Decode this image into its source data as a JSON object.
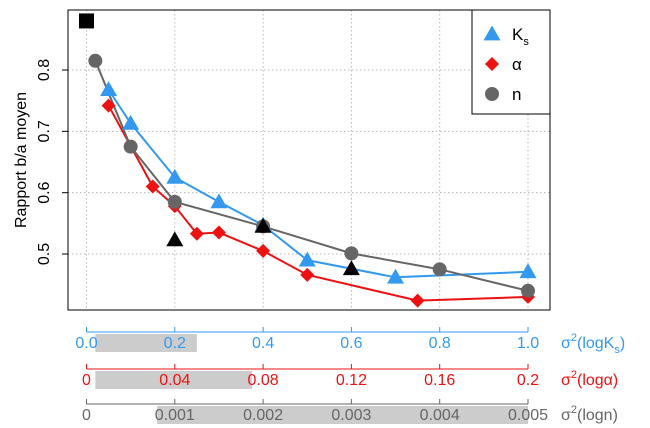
{
  "chart_data": {
    "type": "line",
    "title": "",
    "ylabel": "Rapport b/a moyen",
    "xlabel": "",
    "xlim": [
      0.0,
      1.0
    ],
    "ylim": [
      0.4,
      0.8
    ],
    "y_ticks": [
      "0.5",
      "0.6",
      "0.7",
      "0.8"
    ],
    "y_tick_values": [
      0.5,
      0.6,
      0.7,
      0.8
    ],
    "grid": true,
    "legend_position": "top-right",
    "colors": {
      "Ks": "#3399ee",
      "alpha": "#ee1111",
      "n": "#666666",
      "band": "#cccccc",
      "marker": "#000000"
    },
    "series": [
      {
        "name": "K",
        "name_sub": "s",
        "color": "#3399ee",
        "marker": "triangle",
        "x": [
          0.05,
          0.1,
          0.2,
          0.3,
          0.4,
          0.5,
          0.7,
          1.0
        ],
        "values": [
          0.768,
          0.713,
          0.625,
          0.585,
          0.547,
          0.49,
          0.462,
          0.471
        ]
      },
      {
        "name": "α",
        "color": "#ee1111",
        "marker": "diamond",
        "x": [
          0.05,
          0.15,
          0.2,
          0.25,
          0.3,
          0.4,
          0.5,
          0.75,
          1.0
        ],
        "values": [
          0.742,
          0.61,
          0.578,
          0.533,
          0.535,
          0.505,
          0.466,
          0.424,
          0.43
        ]
      },
      {
        "name": "n",
        "color": "#666666",
        "marker": "circle",
        "x": [
          0.02,
          0.1,
          0.2,
          0.4,
          0.6,
          0.8,
          1.0
        ],
        "values": [
          0.815,
          0.675,
          0.585,
          0.545,
          0.501,
          0.475,
          0.44
        ]
      }
    ],
    "special_markers": [
      {
        "shape": "square",
        "x": 0.0,
        "y": 0.88
      },
      {
        "shape": "triangle",
        "x": 0.2,
        "y": 0.523
      },
      {
        "shape": "triangle",
        "x": 0.4,
        "y": 0.545
      },
      {
        "shape": "triangle",
        "x": 0.6,
        "y": 0.476
      }
    ],
    "axes": [
      {
        "id": "Ks",
        "color": "#3399ee",
        "label_prefix": "σ",
        "label_sup": "2",
        "label_main": "(logK",
        "label_sub": "s",
        "label_suffix": ")",
        "ticks": [
          "0.0",
          "0.2",
          "0.4",
          "0.6",
          "0.8",
          "1.0"
        ],
        "tick_values": [
          0.0,
          0.2,
          0.4,
          0.6,
          0.8,
          1.0
        ],
        "range": [
          0.0,
          1.0
        ],
        "band": [
          0.02,
          0.25
        ]
      },
      {
        "id": "alpha",
        "color": "#ee1111",
        "label_prefix": "σ",
        "label_sup": "2",
        "label_main": "(logα)",
        "label_sub": "",
        "label_suffix": "",
        "ticks": [
          "0",
          "0.04",
          "0.08",
          "0.12",
          "0.16",
          "0.2"
        ],
        "tick_values": [
          0.0,
          0.04,
          0.08,
          0.12,
          0.16,
          0.2
        ],
        "range": [
          0.0,
          0.2
        ],
        "band": [
          0.004,
          0.075
        ]
      },
      {
        "id": "n",
        "color": "#666666",
        "label_prefix": "σ",
        "label_sup": "2",
        "label_main": "(logn)",
        "label_sub": "",
        "label_suffix": "",
        "ticks": [
          "0",
          "0.001",
          "0.002",
          "0.003",
          "0.004",
          "0.005"
        ],
        "tick_values": [
          0.0,
          0.001,
          0.002,
          0.003,
          0.004,
          0.005
        ],
        "range": [
          0.0,
          0.005
        ],
        "band": [
          0.0008,
          0.005
        ]
      }
    ]
  }
}
